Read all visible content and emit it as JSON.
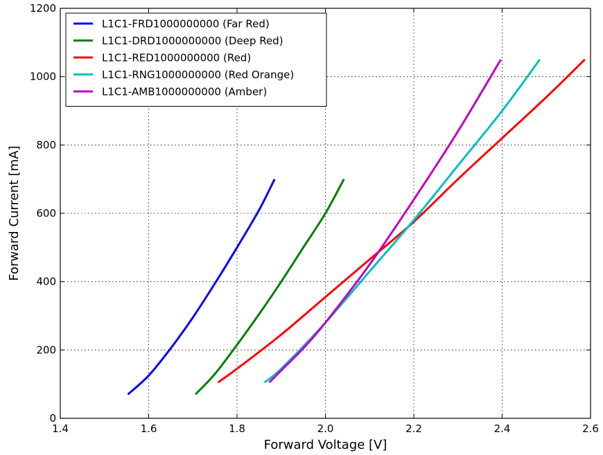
{
  "chart_data": {
    "type": "line",
    "title": "",
    "xlabel": "Forward Voltage [V]",
    "ylabel": "Forward Current [mA]",
    "xlim": [
      1.4,
      2.6
    ],
    "ylim": [
      0,
      1200
    ],
    "xticks": [
      1.4,
      1.6,
      1.8,
      2.0,
      2.2,
      2.4,
      2.6
    ],
    "yticks": [
      0,
      200,
      400,
      600,
      800,
      1000,
      1200
    ],
    "xtick_labels": [
      "1.4",
      "1.6",
      "1.8",
      "2.0",
      "2.2",
      "2.4",
      "2.6"
    ],
    "ytick_labels": [
      "0",
      "200",
      "400",
      "600",
      "800",
      "1000",
      "1200"
    ],
    "grid": true,
    "legend_position": "top-left",
    "series": [
      {
        "name": "L1C1-FRD1000000000 (Far Red)",
        "color": "#0000ff",
        "points": [
          [
            1.553,
            70
          ],
          [
            1.6,
            125
          ],
          [
            1.65,
            205
          ],
          [
            1.7,
            295
          ],
          [
            1.75,
            395
          ],
          [
            1.8,
            500
          ],
          [
            1.85,
            610
          ],
          [
            1.885,
            700
          ]
        ]
      },
      {
        "name": "L1C1-DRD1000000000 (Deep Red)",
        "color": "#008000",
        "points": [
          [
            1.706,
            70
          ],
          [
            1.75,
            130
          ],
          [
            1.8,
            215
          ],
          [
            1.85,
            305
          ],
          [
            1.9,
            400
          ],
          [
            1.95,
            500
          ],
          [
            2.0,
            600
          ],
          [
            2.042,
            700
          ]
        ]
      },
      {
        "name": "L1C1-RED1000000000 (Red)",
        "color": "#ff0000",
        "points": [
          [
            1.757,
            105
          ],
          [
            1.8,
            145
          ],
          [
            1.9,
            245
          ],
          [
            2.0,
            355
          ],
          [
            2.1,
            465
          ],
          [
            2.2,
            575
          ],
          [
            2.3,
            700
          ],
          [
            2.4,
            820
          ],
          [
            2.5,
            940
          ],
          [
            2.587,
            1050
          ]
        ]
      },
      {
        "name": "L1C1-RNG1000000000 (Red Orange)",
        "color": "#00bfbf",
        "points": [
          [
            1.862,
            105
          ],
          [
            1.9,
            145
          ],
          [
            2.0,
            280
          ],
          [
            2.1,
            430
          ],
          [
            2.2,
            580
          ],
          [
            2.3,
            740
          ],
          [
            2.4,
            900
          ],
          [
            2.485,
            1050
          ]
        ]
      },
      {
        "name": "L1C1-AMB1000000000 (Amber)",
        "color": "#bf00bf",
        "points": [
          [
            1.873,
            105
          ],
          [
            1.9,
            140
          ],
          [
            1.95,
            205
          ],
          [
            2.0,
            280
          ],
          [
            2.1,
            450
          ],
          [
            2.2,
            640
          ],
          [
            2.3,
            840
          ],
          [
            2.397,
            1050
          ]
        ]
      }
    ]
  }
}
